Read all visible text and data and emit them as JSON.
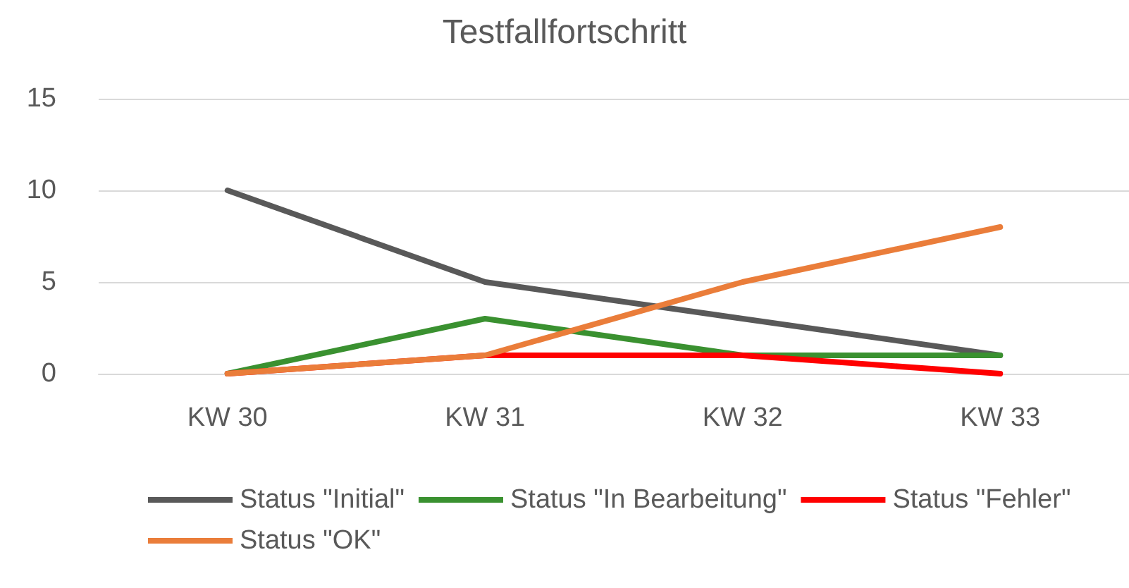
{
  "chart_data": {
    "type": "line",
    "title": "Testfallfortschritt",
    "categories": [
      "KW 30",
      "KW 31",
      "KW 32",
      "KW 33"
    ],
    "series": [
      {
        "name": "Status \"Initial\"",
        "color": "#595959",
        "values": [
          10,
          5,
          3,
          1
        ]
      },
      {
        "name": "Status \"In Bearbeitung\"",
        "color": "#3a9130",
        "values": [
          0,
          3,
          1,
          1
        ]
      },
      {
        "name": "Status \"Fehler\"",
        "color": "#ff0000",
        "values": [
          0,
          1,
          1,
          0
        ]
      },
      {
        "name": "Status \"OK\"",
        "color": "#ea7d3a",
        "values": [
          0,
          1,
          5,
          8
        ]
      }
    ],
    "ylim": [
      0,
      15
    ],
    "yticks": [
      0,
      5,
      10,
      15
    ],
    "grid": "y",
    "legend": "bottom",
    "marker": "none",
    "line_style": "solid"
  }
}
